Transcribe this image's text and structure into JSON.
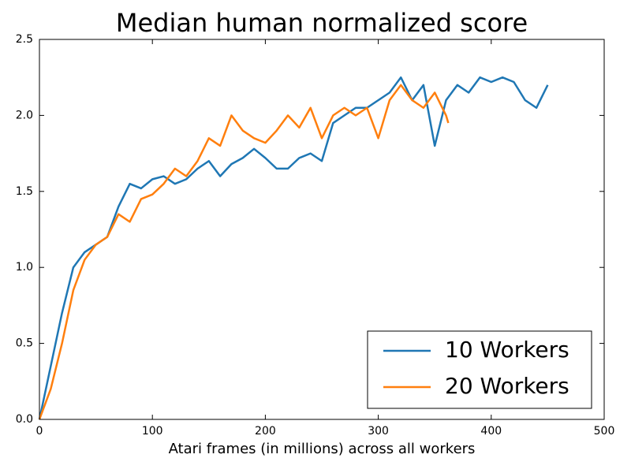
{
  "chart_data": {
    "type": "line",
    "title": "Median human normalized score",
    "x_label": "Atari frames (in millions) across all workers",
    "xlim": [
      0,
      500
    ],
    "xticks": [
      0,
      100,
      200,
      300,
      400,
      500
    ],
    "ylim": [
      0,
      2.5
    ],
    "yticks": [
      {
        "value": 0,
        "label": "0.0"
      },
      0.5,
      {
        "value": 1,
        "label": "1.0"
      },
      1.5,
      {
        "value": 2,
        "label": "2.0"
      },
      2.5
    ],
    "legend": "lower right",
    "grid": false,
    "series": [
      {
        "name": "10 Workers",
        "color": "#1f77b4",
        "x": [
          0,
          10,
          20,
          30,
          40,
          50,
          60,
          70,
          80,
          90,
          100,
          110,
          120,
          130,
          140,
          150,
          160,
          170,
          180,
          190,
          200,
          210,
          220,
          230,
          240,
          250,
          260,
          270,
          280,
          290,
          300,
          310,
          320,
          330,
          340,
          350,
          360,
          370,
          380,
          390,
          400,
          410,
          420,
          430,
          440,
          450
        ],
        "values": [
          0,
          0.35,
          0.7,
          1.0,
          1.1,
          1.15,
          1.2,
          1.4,
          1.55,
          1.52,
          1.58,
          1.6,
          1.55,
          1.58,
          1.65,
          1.7,
          1.6,
          1.68,
          1.72,
          1.78,
          1.72,
          1.65,
          1.65,
          1.72,
          1.75,
          1.7,
          1.95,
          2.0,
          2.05,
          2.05,
          2.1,
          2.15,
          2.25,
          2.1,
          2.2,
          1.8,
          2.1,
          2.2,
          2.15,
          2.25,
          2.22,
          2.25,
          2.22,
          2.1,
          2.05,
          2.2
        ]
      },
      {
        "name": "20 Workers",
        "color": "#ff7f0e",
        "x": [
          0,
          10,
          20,
          30,
          40,
          50,
          60,
          70,
          80,
          90,
          100,
          110,
          120,
          130,
          140,
          150,
          160,
          170,
          180,
          190,
          200,
          210,
          220,
          230,
          240,
          250,
          260,
          270,
          280,
          290,
          300,
          310,
          320,
          330,
          340,
          350,
          360,
          362
        ],
        "values": [
          0,
          0.2,
          0.5,
          0.85,
          1.05,
          1.15,
          1.2,
          1.35,
          1.3,
          1.45,
          1.48,
          1.55,
          1.65,
          1.6,
          1.7,
          1.85,
          1.8,
          2.0,
          1.9,
          1.85,
          1.82,
          1.9,
          2.0,
          1.92,
          2.05,
          1.85,
          2.0,
          2.05,
          2.0,
          2.05,
          1.85,
          2.1,
          2.2,
          2.1,
          2.05,
          2.15,
          2.0,
          1.95
        ]
      }
    ]
  }
}
